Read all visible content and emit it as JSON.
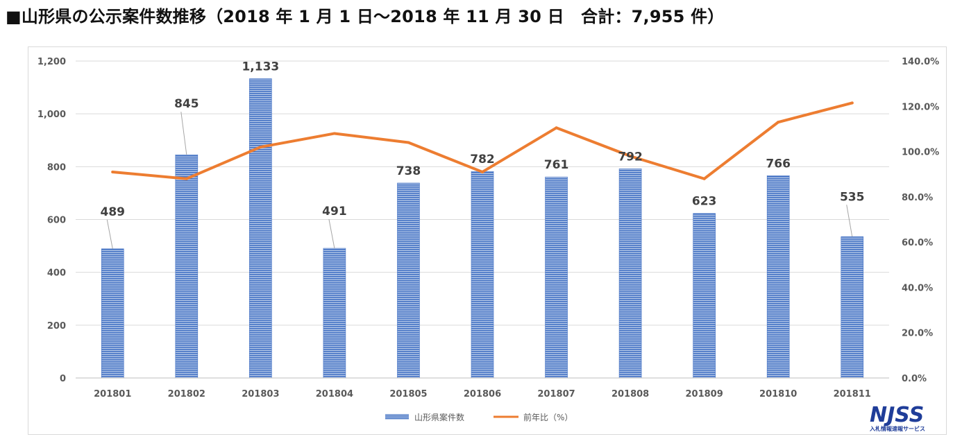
{
  "heading": "■山形県の公示案件数推移（2018 年 1 月 1 日～2018 年 11 月 30 日　合計：7,955 件）",
  "chart_data": {
    "type": "bar+line",
    "categories": [
      "201801",
      "201802",
      "201803",
      "201804",
      "201805",
      "201806",
      "201807",
      "201808",
      "201809",
      "201810",
      "201811"
    ],
    "series": [
      {
        "name": "山形県案件数",
        "type": "bar",
        "axis": "left",
        "values": [
          489,
          845,
          1133,
          491,
          738,
          782,
          761,
          792,
          623,
          766,
          535
        ],
        "labels": [
          "489",
          "845",
          "1,133",
          "491",
          "738",
          "782",
          "761",
          "792",
          "623",
          "766",
          "535"
        ]
      },
      {
        "name": "前年比（%）",
        "type": "line",
        "axis": "right",
        "values": [
          91,
          88,
          102,
          108,
          104,
          91,
          110.5,
          98,
          88,
          113,
          121.5
        ]
      }
    ],
    "y_left": {
      "min": 0,
      "max": 1200,
      "step": 200,
      "tick_labels": [
        "0",
        "200",
        "400",
        "600",
        "800",
        "1,000",
        "1,200"
      ]
    },
    "y_right": {
      "min": 0,
      "max": 140,
      "step": 20,
      "tick_labels": [
        "0.0%",
        "20.0%",
        "40.0%",
        "60.0%",
        "80.0%",
        "100.0%",
        "120.0%",
        "140.0%"
      ]
    },
    "grid": true,
    "legend_position": "bottom",
    "colors": {
      "bar": "#4472c4",
      "line": "#ed7d31"
    }
  },
  "logo": {
    "text": "NJSS",
    "subtitle": "入札情報速報サービス"
  }
}
